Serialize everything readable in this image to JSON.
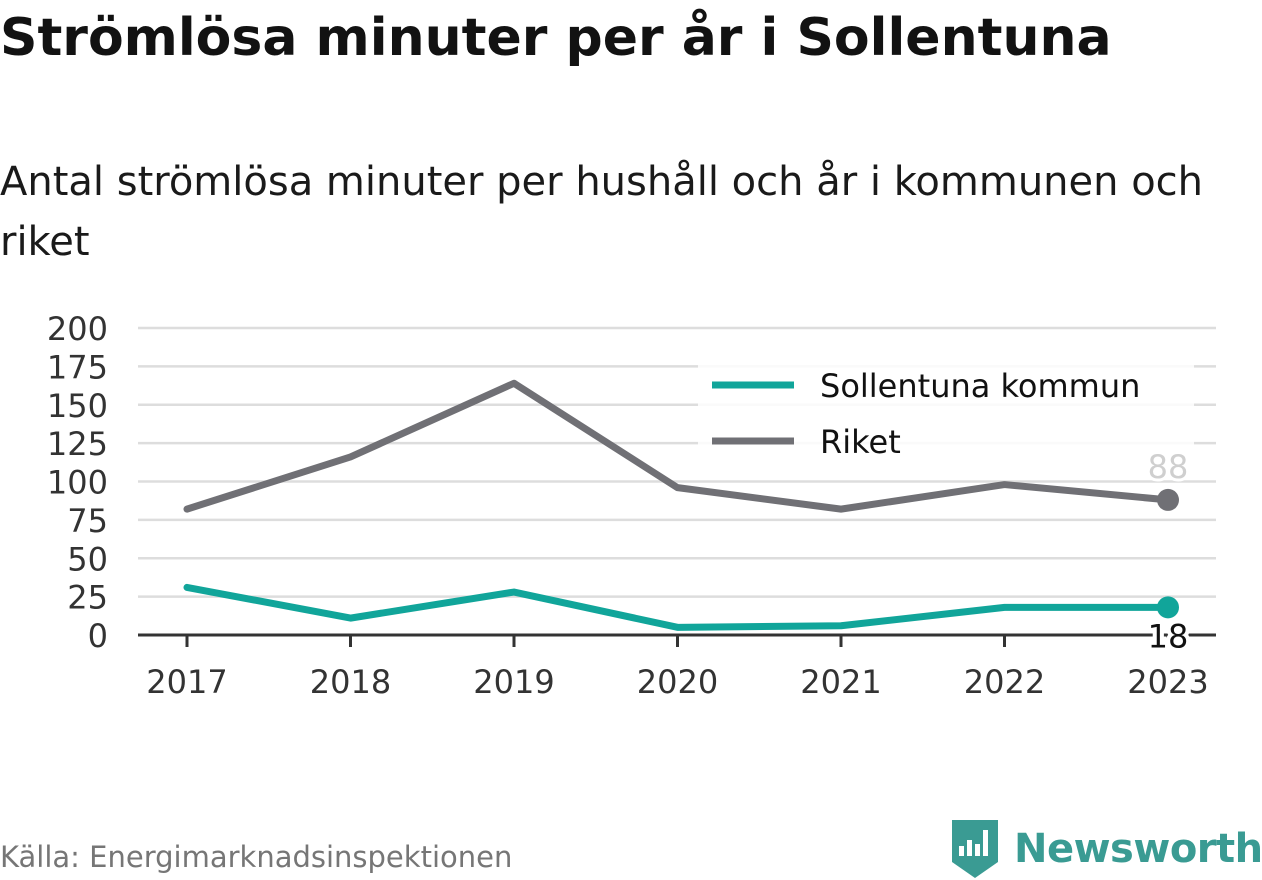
{
  "title": "Strömlösa minuter per år i Sollentuna",
  "subtitle": "Antal strömlösa minuter per hushåll och år i kommunen och riket",
  "source": "Källa: Energimarknadsinspektionen",
  "brand": "Newsworthy",
  "colors": {
    "sollentuna": "#11a59a",
    "riket": "#707075",
    "grid": "#dddddd",
    "axis": "#333333",
    "brand": "#3a9b93"
  },
  "chart_data": {
    "type": "line",
    "x": [
      "2017",
      "2018",
      "2019",
      "2020",
      "2021",
      "2022",
      "2023"
    ],
    "y_ticks": [
      0,
      25,
      50,
      75,
      100,
      125,
      150,
      175,
      200
    ],
    "ylim": [
      0,
      200
    ],
    "grid": true,
    "legend_position": "top-right",
    "series": [
      {
        "name": "Sollentuna kommun",
        "values": [
          31,
          11,
          28,
          5,
          6,
          18,
          18
        ],
        "end_label": "18"
      },
      {
        "name": "Riket",
        "values": [
          82,
          116,
          164,
          96,
          82,
          98,
          88
        ],
        "end_label": "88"
      }
    ]
  }
}
